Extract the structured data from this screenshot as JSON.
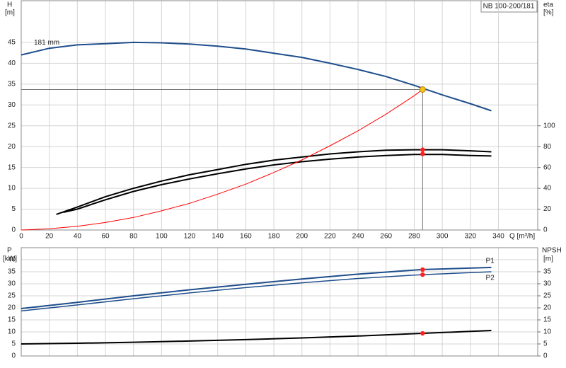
{
  "chart_data": [
    {
      "type": "line",
      "title": "NB 100-200/181",
      "ylabel": "H",
      "yunit": "[m]",
      "y2label": "eta",
      "y2unit": "[%]",
      "xlabel": "Q [m³/h]",
      "xlim": [
        0,
        368
      ],
      "xticks": [
        0,
        20,
        40,
        60,
        80,
        100,
        120,
        140,
        160,
        180,
        200,
        220,
        240,
        260,
        280,
        300,
        320,
        340
      ],
      "ylim": [
        0,
        55
      ],
      "yticks": [
        0,
        5,
        10,
        15,
        20,
        25,
        30,
        35,
        40,
        45
      ],
      "y2lim": [
        0,
        220
      ],
      "y2ticks": [
        0,
        20,
        40,
        60,
        80,
        100
      ],
      "grid": true,
      "series": [
        {
          "name": "181 mm",
          "color": "#1f4e8c",
          "line_width": 2,
          "x": [
            0,
            20,
            40,
            60,
            80,
            100,
            120,
            140,
            160,
            180,
            200,
            220,
            240,
            260,
            280,
            300,
            320,
            335
          ],
          "values": [
            42,
            43.6,
            44.4,
            44.7,
            45,
            44.9,
            44.6,
            44.1,
            43.4,
            42.4,
            41.4,
            40,
            38.5,
            36.8,
            34.7,
            32.4,
            30.3,
            28.6
          ]
        },
        {
          "color": "#000000",
          "line_width": 2,
          "axis": "y2",
          "x": [
            25,
            40,
            60,
            80,
            100,
            120,
            140,
            160,
            180,
            200,
            220,
            240,
            260,
            280,
            300,
            320,
            335
          ],
          "values": [
            15,
            22,
            32,
            40,
            47,
            53,
            58,
            63,
            67,
            70,
            73,
            75,
            76.5,
            77,
            77,
            76,
            75
          ]
        },
        {
          "color": "#000000",
          "line_width": 2,
          "axis": "y2",
          "x": [
            30,
            40,
            60,
            80,
            100,
            120,
            140,
            160,
            180,
            200,
            220,
            240,
            260,
            280,
            300,
            320,
            335
          ],
          "values": [
            17,
            20,
            29,
            37,
            43.5,
            49,
            54,
            58.5,
            62.5,
            65.5,
            68,
            70,
            71.5,
            72.5,
            72.5,
            71.5,
            71
          ]
        },
        {
          "color": "#ff0000",
          "line_width": 1,
          "x": [
            0,
            20,
            40,
            60,
            80,
            100,
            120,
            140,
            160,
            180,
            200,
            220,
            240,
            260,
            280,
            286
          ],
          "values": [
            0,
            0.3,
            0.9,
            1.8,
            3,
            4.6,
            6.4,
            8.6,
            11,
            13.8,
            16.8,
            20.2,
            23.8,
            27.8,
            32.2,
            33.7
          ]
        }
      ],
      "points": [
        {
          "x": 286,
          "y": 77,
          "axis": "y2",
          "color": "#ff2020"
        },
        {
          "x": 286,
          "y": 73,
          "axis": "y2",
          "color": "#ff2020"
        }
      ],
      "operating_point": {
        "x": 286,
        "y": 33.7,
        "color": "#f5c518"
      }
    },
    {
      "type": "line",
      "ylabel": "P",
      "yunit": "[kW]",
      "y2label": "NPSH",
      "y2unit": "[m]",
      "ylim": [
        0,
        45
      ],
      "yticks": [
        0,
        5,
        10,
        15,
        20,
        25,
        30,
        35,
        40
      ],
      "y2lim": [
        0,
        45
      ],
      "y2ticks": [
        0,
        5,
        10,
        15,
        20,
        25,
        30,
        35
      ],
      "grid": true,
      "series": [
        {
          "name": "P1",
          "color": "#1f4e8c",
          "line_width": 2,
          "x": [
            0,
            40,
            80,
            120,
            160,
            200,
            240,
            280,
            286,
            335
          ],
          "values": [
            19.7,
            22.3,
            25,
            27.5,
            29.8,
            32,
            34,
            35.7,
            35.9,
            36.8
          ]
        },
        {
          "name": "P2",
          "color": "#1f4e8c",
          "line_width": 1.5,
          "x": [
            0,
            40,
            80,
            120,
            160,
            200,
            240,
            280,
            286,
            335
          ],
          "values": [
            18.7,
            21.2,
            23.8,
            26.2,
            28.4,
            30.4,
            32.2,
            33.6,
            33.8,
            35
          ]
        },
        {
          "color": "#000000",
          "line_width": 2,
          "axis": "y2",
          "x": [
            0,
            40,
            80,
            120,
            160,
            200,
            240,
            286,
            335
          ],
          "values": [
            5,
            5.3,
            5.7,
            6.2,
            6.8,
            7.5,
            8.3,
            9.4,
            10.6
          ]
        }
      ],
      "points": [
        {
          "x": 286,
          "y": 35.9,
          "color": "#ff2020"
        },
        {
          "x": 286,
          "y": 33.8,
          "color": "#ff2020"
        },
        {
          "x": 286,
          "y": 9.4,
          "axis": "y2",
          "color": "#ff2020"
        }
      ]
    }
  ]
}
